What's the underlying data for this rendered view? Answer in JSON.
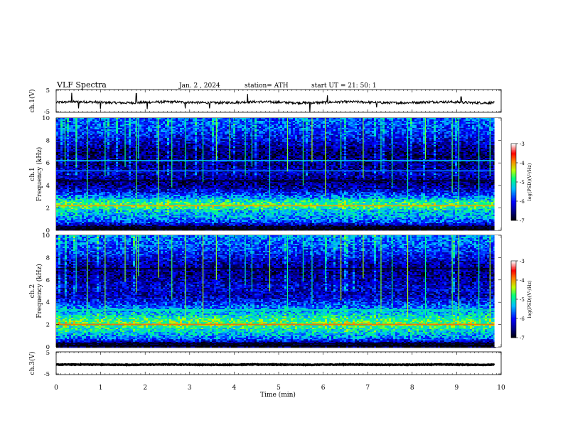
{
  "header": {
    "title": "VLF  Spectra",
    "date": "Jan.  2  ,  2024",
    "station": "station= ATH",
    "start": "start  UT  =    21: 50: 1"
  },
  "colors": {
    "background": "#ffffff",
    "axes": "#000000",
    "colormap": [
      "#000000",
      "#00007f",
      "#0000ff",
      "#00bfff",
      "#00ff80",
      "#c0ff00",
      "#ff8000",
      "#ff0000",
      "#ffffff"
    ]
  },
  "chart_data": [
    {
      "type": "line",
      "name": "ch1-waveform",
      "ylabel": "ch.1(V)",
      "ylim": [
        -5,
        5
      ],
      "yticks": [
        "5",
        "-5"
      ],
      "xlim": [
        0,
        10
      ],
      "baseline": 0,
      "noise_amplitude": 0.6,
      "spikes": [
        {
          "t": 0.35,
          "v": 4.8
        },
        {
          "t": 0.5,
          "v": -3.0
        },
        {
          "t": 1.0,
          "v": -3.2
        },
        {
          "t": 1.8,
          "v": 4.5
        },
        {
          "t": 2.05,
          "v": -3.4
        },
        {
          "t": 2.9,
          "v": -3.0
        },
        {
          "t": 3.45,
          "v": -3.0
        },
        {
          "t": 4.3,
          "v": 4.2
        },
        {
          "t": 5.7,
          "v": -5.0
        },
        {
          "t": 6.1,
          "v": 3.5
        },
        {
          "t": 7.2,
          "v": -2.5
        },
        {
          "t": 9.1,
          "v": 2.8
        }
      ]
    },
    {
      "type": "heatmap",
      "name": "ch1-spectrogram",
      "ylabel": "ch.1\nFrequency  (kHz)",
      "ylim": [
        0,
        10
      ],
      "yticks": [
        "0",
        "2",
        "4",
        "6",
        "8",
        "10"
      ],
      "xlim": [
        0,
        9.85
      ],
      "color_label": "log(PSD)(V²/Hz)",
      "color_range": [
        -7,
        -3
      ],
      "color_ticks": [
        "-3",
        "-4",
        "-5",
        "-6",
        "-7"
      ],
      "profile": [
        {
          "f": 0.0,
          "v": -6.8
        },
        {
          "f": 0.3,
          "v": -6.9
        },
        {
          "f": 0.8,
          "v": -5.8
        },
        {
          "f": 1.3,
          "v": -5.4
        },
        {
          "f": 1.8,
          "v": -5.2
        },
        {
          "f": 2.2,
          "v": -4.7
        },
        {
          "f": 2.6,
          "v": -4.9
        },
        {
          "f": 3.0,
          "v": -5.5
        },
        {
          "f": 3.6,
          "v": -6.2
        },
        {
          "f": 4.3,
          "v": -6.6
        },
        {
          "f": 5.0,
          "v": -6.3
        },
        {
          "f": 6.0,
          "v": -6.5
        },
        {
          "f": 7.0,
          "v": -6.6
        },
        {
          "f": 8.0,
          "v": -6.2
        },
        {
          "f": 9.0,
          "v": -5.8
        },
        {
          "f": 10.0,
          "v": -5.7
        }
      ],
      "bands": [
        {
          "f": 2.2,
          "v": -4.0
        },
        {
          "f": 0.3,
          "v": -6.9
        },
        {
          "f": 0.1,
          "v": -7.0
        },
        {
          "f": 4.4,
          "v": -6.9
        },
        {
          "f": 5.3,
          "v": -5.6
        },
        {
          "f": 6.2,
          "v": -5.3
        }
      ],
      "sferics": [
        0.2,
        0.45,
        0.7,
        1.1,
        1.55,
        1.8,
        1.85,
        2.3,
        2.6,
        2.9,
        3.3,
        3.6,
        3.9,
        4.25,
        4.4,
        4.8,
        5.2,
        5.55,
        5.75,
        6.05,
        6.4,
        6.9,
        7.3,
        7.55,
        7.9,
        8.3,
        8.9,
        9.05,
        9.5,
        9.75
      ]
    },
    {
      "type": "heatmap",
      "name": "ch2-spectrogram",
      "ylabel": "ch.2\nFrequency  (kHz)",
      "ylim": [
        0,
        10
      ],
      "yticks": [
        "0",
        "2",
        "4",
        "6",
        "8",
        "10"
      ],
      "xlim": [
        0,
        9.85
      ],
      "color_label": "log(PSD)(V²/Hz)",
      "color_range": [
        -7,
        -3
      ],
      "color_ticks": [
        "-3",
        "-4",
        "-5",
        "-6",
        "-7"
      ],
      "profile": [
        {
          "f": 0.0,
          "v": -6.8
        },
        {
          "f": 0.3,
          "v": -6.9
        },
        {
          "f": 0.8,
          "v": -5.6
        },
        {
          "f": 1.3,
          "v": -5.2
        },
        {
          "f": 1.8,
          "v": -4.9
        },
        {
          "f": 2.2,
          "v": -4.6
        },
        {
          "f": 2.6,
          "v": -4.9
        },
        {
          "f": 3.0,
          "v": -5.2
        },
        {
          "f": 3.5,
          "v": -5.5
        },
        {
          "f": 4.0,
          "v": -5.9
        },
        {
          "f": 4.6,
          "v": -6.3
        },
        {
          "f": 5.5,
          "v": -6.2
        },
        {
          "f": 6.5,
          "v": -6.5
        },
        {
          "f": 7.5,
          "v": -6.4
        },
        {
          "f": 8.5,
          "v": -5.9
        },
        {
          "f": 10.0,
          "v": -5.5
        }
      ],
      "bands": [
        {
          "f": 2.0,
          "v": -3.8
        },
        {
          "f": 0.3,
          "v": -6.9
        },
        {
          "f": 0.1,
          "v": -7.0
        },
        {
          "f": 3.3,
          "v": -5.0
        },
        {
          "f": 7.0,
          "v": -6.9
        }
      ],
      "sferics": [
        0.2,
        0.45,
        0.7,
        1.1,
        1.55,
        1.8,
        1.85,
        2.3,
        2.6,
        2.9,
        3.3,
        3.6,
        3.9,
        4.25,
        4.4,
        4.8,
        5.2,
        5.55,
        5.75,
        6.05,
        6.4,
        6.9,
        7.3,
        7.55,
        7.9,
        8.3,
        8.9,
        9.05,
        9.5,
        9.75
      ]
    },
    {
      "type": "line",
      "name": "ch3-waveform",
      "ylabel": "ch.3(V)",
      "ylim": [
        -5,
        5
      ],
      "yticks": [
        "5",
        "-5"
      ],
      "xlim": [
        0,
        10
      ],
      "baseline": 0,
      "noise_amplitude": 0.15,
      "spikes": []
    }
  ],
  "xaxis": {
    "label": "Time  (min)",
    "ticks": [
      "0",
      "1",
      "2",
      "3",
      "4",
      "5",
      "6",
      "7",
      "8",
      "9",
      "10"
    ],
    "range": [
      0,
      10
    ]
  }
}
